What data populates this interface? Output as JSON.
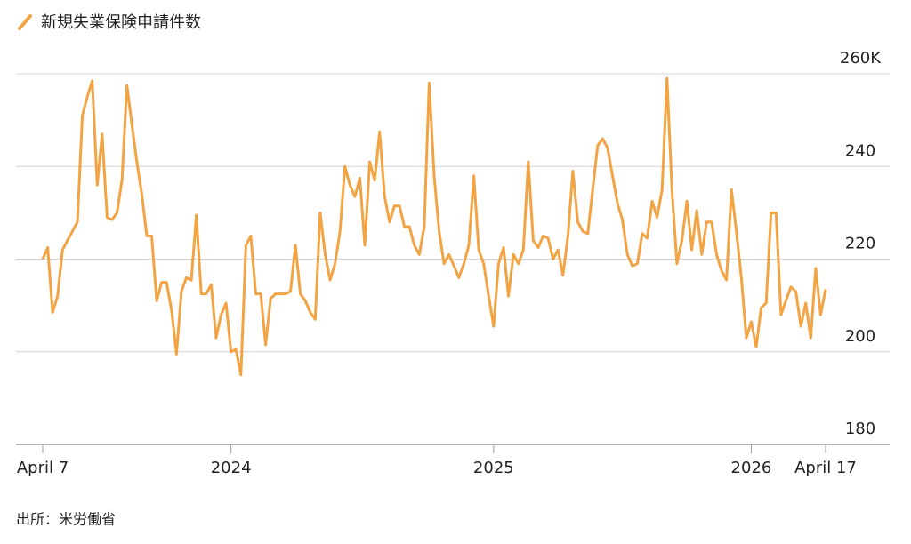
{
  "chart_data": {
    "type": "line",
    "series": [
      {
        "name": "新規失業保険申請件数",
        "color": "#f2a444",
        "values": [
          220,
          222.5,
          208.5,
          212,
          222,
          224,
          226,
          228,
          251,
          255,
          258.5,
          236,
          247,
          229,
          228.5,
          230,
          237,
          257.5,
          249,
          241,
          234,
          225,
          225,
          211,
          215,
          215,
          209,
          199.5,
          213,
          216,
          215.5,
          229.5,
          212.5,
          212.5,
          214.5,
          203,
          208,
          210.5,
          200,
          200.5,
          195,
          223,
          225,
          212.5,
          212.5,
          201.5,
          211.5,
          212.5,
          212.5,
          212.5,
          213,
          223,
          212.5,
          211,
          208.5,
          207,
          230,
          221,
          215.5,
          219,
          226,
          240,
          236,
          233.5,
          237.5,
          223,
          241,
          237,
          247.5,
          233.5,
          228,
          231.5,
          231.5,
          227,
          227,
          223,
          221,
          227,
          258,
          238,
          226,
          219,
          221,
          218.5,
          216,
          219,
          223,
          238,
          222,
          219,
          212,
          205.5,
          219,
          222.5,
          212,
          221,
          219,
          222,
          241,
          224,
          222.5,
          225,
          224.5,
          220,
          222,
          216.5,
          225,
          239,
          228,
          226,
          225.5,
          235,
          244.5,
          246,
          244,
          238,
          232,
          228.5,
          221,
          218.5,
          219,
          225.5,
          224.5,
          232.5,
          229,
          235,
          259,
          235,
          219,
          224,
          232.5,
          222,
          230.5,
          221,
          228,
          228,
          221,
          217.5,
          215.5,
          235,
          226,
          216,
          203,
          206.5,
          201,
          209.5,
          210.5,
          230,
          230,
          208,
          211,
          214,
          213,
          205.5,
          210.5,
          203,
          218,
          208,
          213.5
        ]
      }
    ],
    "categories": [
      "April 7",
      null,
      null,
      null,
      null,
      null,
      null,
      null,
      null,
      null,
      null,
      null,
      null,
      null,
      null,
      null,
      null,
      null,
      null,
      null,
      null,
      null,
      null,
      null,
      null,
      null,
      null,
      null,
      null,
      null,
      null,
      null,
      null,
      null,
      null,
      null,
      null,
      null,
      "2024",
      null,
      null,
      null,
      null,
      null,
      null,
      null,
      null,
      null,
      null,
      null,
      null,
      null,
      null,
      null,
      null,
      null,
      null,
      null,
      null,
      null,
      null,
      null,
      null,
      null,
      null,
      null,
      null,
      null,
      null,
      null,
      null,
      null,
      null,
      null,
      null,
      null,
      null,
      null,
      null,
      null,
      null,
      null,
      null,
      null,
      null,
      null,
      null,
      null,
      null,
      null,
      null,
      "2025",
      null,
      null,
      null,
      null,
      null,
      null,
      null,
      null,
      null,
      null,
      null,
      null,
      null,
      null,
      null,
      null,
      null,
      null,
      null,
      null,
      null,
      null,
      null,
      null,
      null,
      null,
      null,
      null,
      null,
      null,
      null,
      null,
      null,
      null,
      null,
      null,
      null,
      null,
      null,
      null,
      null,
      null,
      null,
      null,
      null,
      null,
      null,
      null,
      null,
      null,
      null,
      "2026",
      null,
      null,
      null,
      null,
      null,
      null,
      null,
      null,
      null,
      null,
      null,
      null,
      null,
      null,
      "April 17"
    ],
    "ylim": [
      180,
      260
    ],
    "yticks": [
      180,
      200,
      220,
      240,
      {
        "value": 260,
        "label": "260K"
      }
    ],
    "grid": true,
    "source": "出所：米労働省"
  }
}
